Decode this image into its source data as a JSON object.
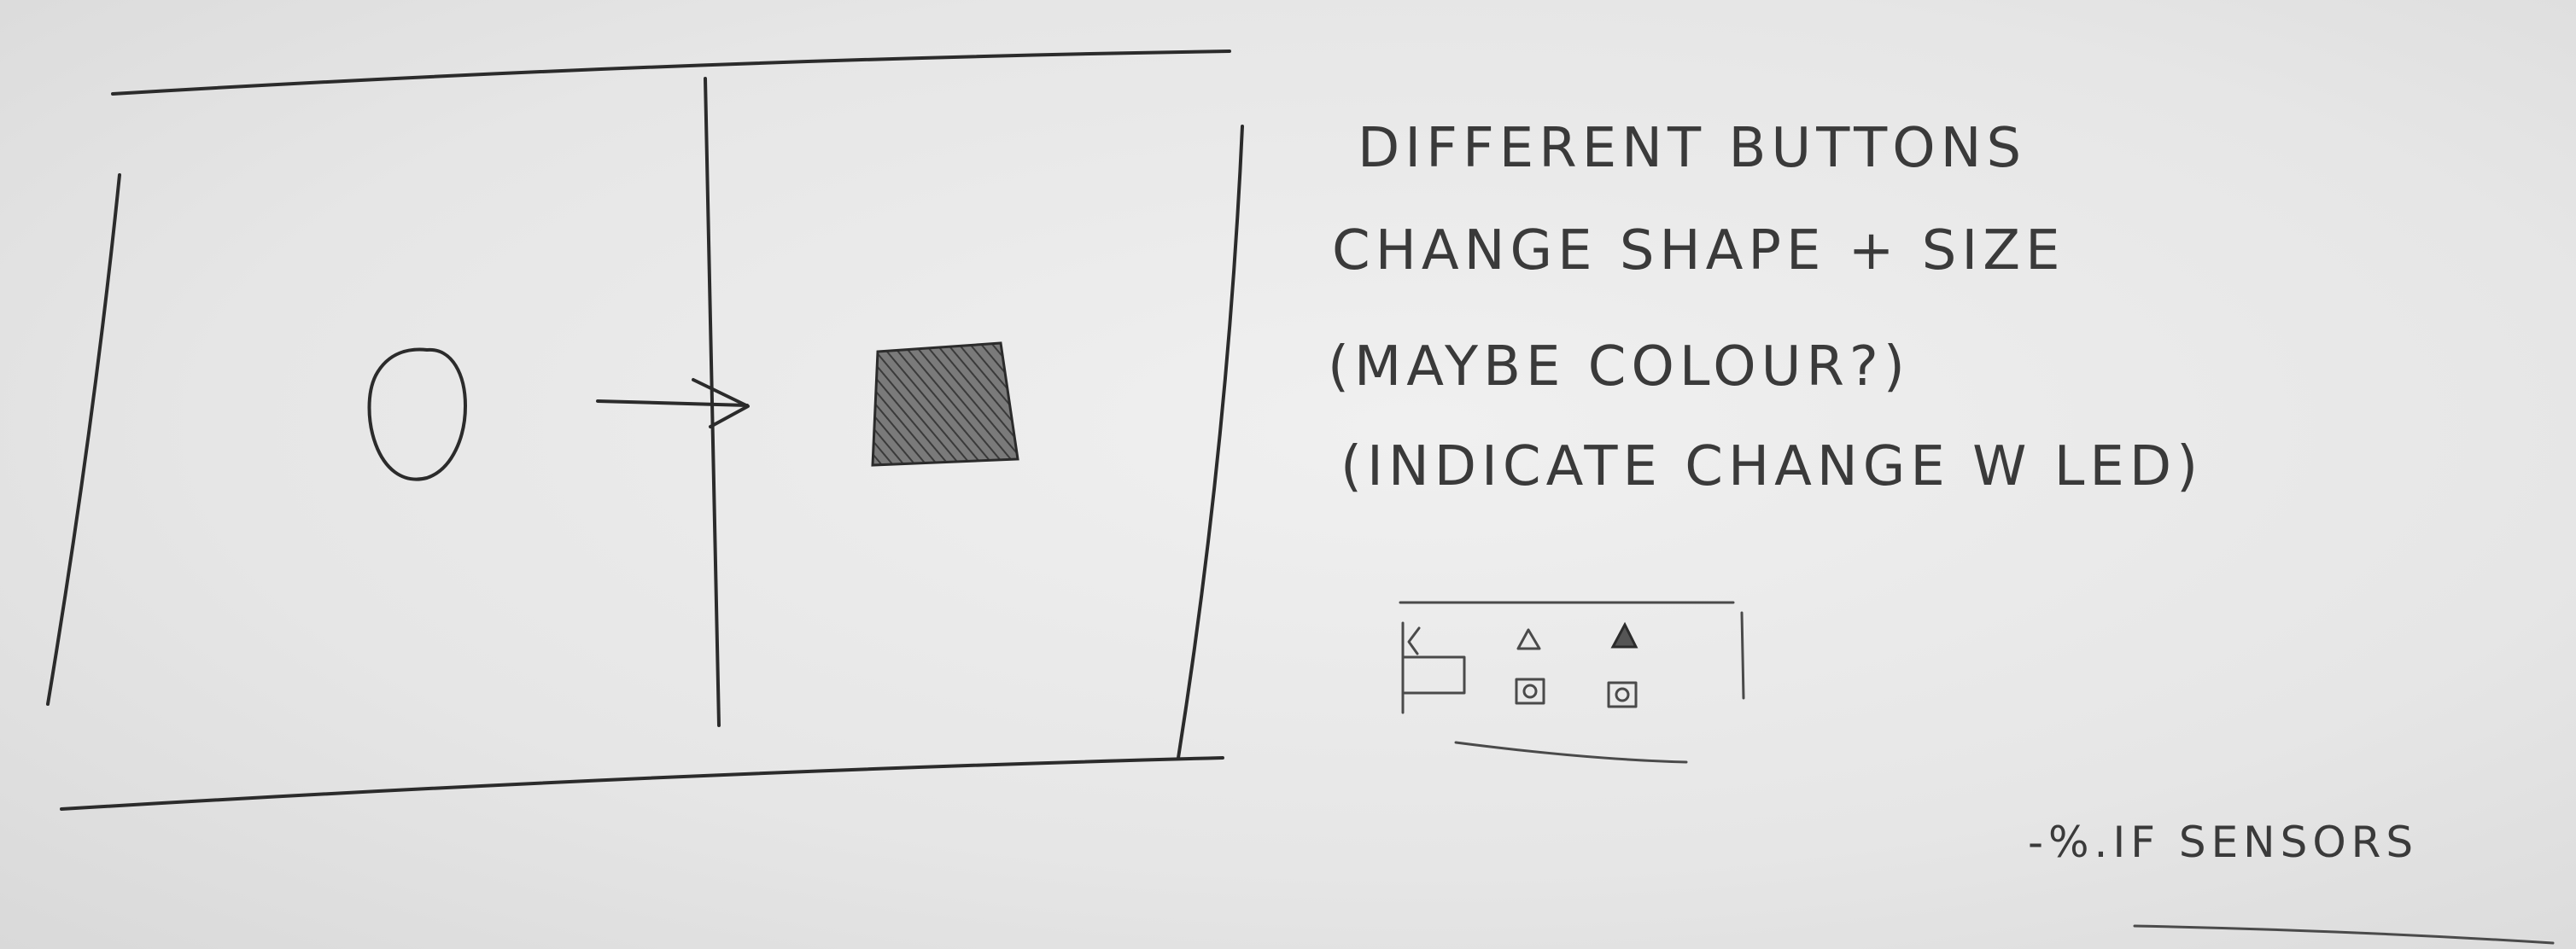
{
  "notes": {
    "line1": "DIFFERENT BUTTONS",
    "line2": "CHANGE SHAPE + SIZE",
    "line3": "(MAYBE COLOUR?)",
    "line4": "(INDICATE CHANGE W LED)",
    "bottom_note": "-%.IF SENSORS"
  },
  "sketch": {
    "from_shape": "circle",
    "to_shape": "shaded-square",
    "transition": "arrow",
    "device_icons": [
      "triangle-outline",
      "triangle-filled",
      "square-button",
      "square-button"
    ]
  }
}
